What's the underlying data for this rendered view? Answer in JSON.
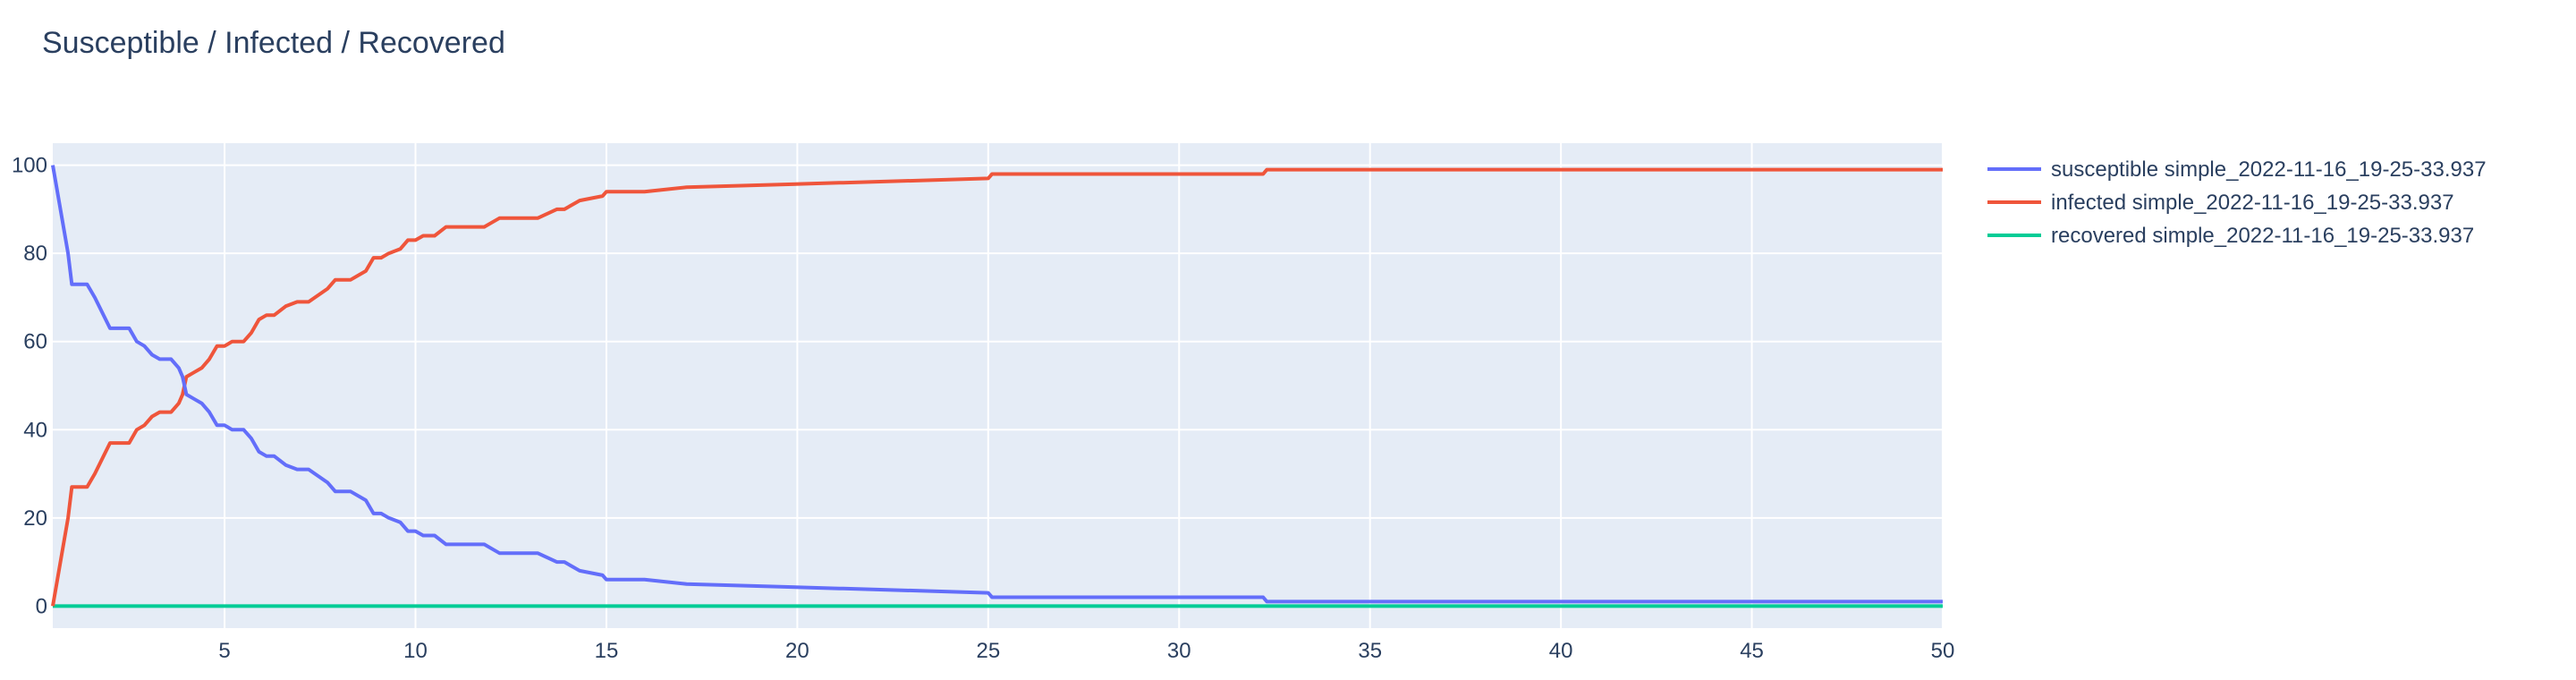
{
  "chart_data": {
    "type": "line",
    "title": "Susceptible / Infected / Recovered",
    "xlabel": "",
    "ylabel": "",
    "xlim": [
      0.5,
      50
    ],
    "ylim": [
      -5,
      105
    ],
    "x_ticks": [
      5,
      10,
      15,
      20,
      25,
      30,
      35,
      40,
      45,
      50
    ],
    "y_ticks": [
      0,
      20,
      40,
      60,
      80,
      100
    ],
    "grid": true,
    "legend_position": "top-right",
    "background": "#e5ecf6",
    "series": [
      {
        "name": "susceptible simple_2022-11-16_19-25-33.937",
        "color": "#636efa",
        "x": [
          0.5,
          0.9,
          1.0,
          1.4,
          1.6,
          2.0,
          2.2,
          2.5,
          2.7,
          2.9,
          3.1,
          3.3,
          3.6,
          3.8,
          3.9,
          4.0,
          4.2,
          4.4,
          4.6,
          4.8,
          5.0,
          5.2,
          5.5,
          5.7,
          5.9,
          6.1,
          6.3,
          6.6,
          6.9,
          7.2,
          7.7,
          7.9,
          8.3,
          8.7,
          8.9,
          9.1,
          9.3,
          9.6,
          9.8,
          10.0,
          10.2,
          10.5,
          10.8,
          11.3,
          11.8,
          12.0,
          12.2,
          12.6,
          13.2,
          13.7,
          13.9,
          14.1,
          14.3,
          14.9,
          15.0,
          16.0,
          17.1,
          21.1,
          21.2,
          25.0,
          25.1,
          32.2,
          32.3,
          50.0
        ],
        "y": [
          100,
          80,
          73,
          73,
          70,
          63,
          63,
          63,
          60,
          59,
          57,
          56,
          56,
          54,
          52,
          48,
          47,
          46,
          44,
          41,
          41,
          40,
          40,
          38,
          35,
          34,
          34,
          32,
          31,
          31,
          28,
          26,
          26,
          24,
          21,
          21,
          20,
          19,
          17,
          17,
          16,
          16,
          14,
          14,
          14,
          13,
          12,
          12,
          12,
          10,
          10,
          9,
          8,
          7,
          6,
          6,
          5,
          4,
          4,
          3,
          2,
          2,
          1,
          1
        ]
      },
      {
        "name": "infected simple_2022-11-16_19-25-33.937",
        "color": "#ef553b",
        "x": [
          0.5,
          0.9,
          1.0,
          1.4,
          1.6,
          2.0,
          2.2,
          2.5,
          2.7,
          2.9,
          3.1,
          3.3,
          3.6,
          3.8,
          3.9,
          4.0,
          4.2,
          4.4,
          4.6,
          4.8,
          5.0,
          5.2,
          5.5,
          5.7,
          5.9,
          6.1,
          6.3,
          6.6,
          6.9,
          7.2,
          7.7,
          7.9,
          8.3,
          8.7,
          8.9,
          9.1,
          9.3,
          9.6,
          9.8,
          10.0,
          10.2,
          10.5,
          10.8,
          11.3,
          11.8,
          12.0,
          12.2,
          12.6,
          13.2,
          13.7,
          13.9,
          14.1,
          14.3,
          14.9,
          15.0,
          16.0,
          17.1,
          21.1,
          21.2,
          25.0,
          25.1,
          32.2,
          32.3,
          50.0
        ],
        "y": [
          0,
          20,
          27,
          27,
          30,
          37,
          37,
          37,
          40,
          41,
          43,
          44,
          44,
          46,
          48,
          52,
          53,
          54,
          56,
          59,
          59,
          60,
          60,
          62,
          65,
          66,
          66,
          68,
          69,
          69,
          72,
          74,
          74,
          76,
          79,
          79,
          80,
          81,
          83,
          83,
          84,
          84,
          86,
          86,
          86,
          87,
          88,
          88,
          88,
          90,
          90,
          91,
          92,
          93,
          94,
          94,
          95,
          96,
          96,
          97,
          98,
          98,
          99,
          99
        ]
      },
      {
        "name": "recovered simple_2022-11-16_19-25-33.937",
        "color": "#00cc96",
        "x": [
          0.5,
          50.0
        ],
        "y": [
          0,
          0
        ]
      }
    ]
  }
}
